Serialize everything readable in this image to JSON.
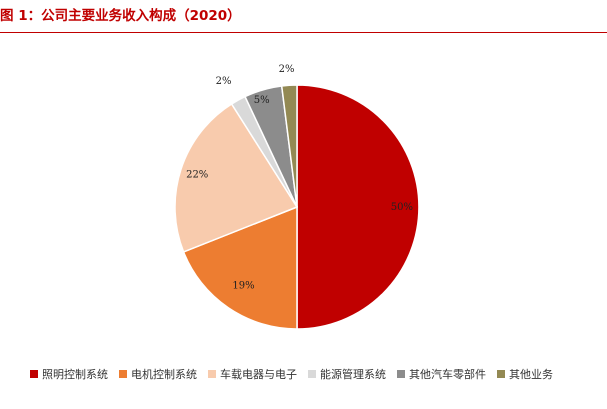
{
  "header": {
    "title": "图 1：公司主要业务收入构成（2020）"
  },
  "colors": {
    "title": "#c00000",
    "slices": [
      "#c00000",
      "#ed7d31",
      "#f8cbad",
      "#d9d9d9",
      "#8c8c8c",
      "#938953"
    ]
  },
  "chart_data": {
    "type": "pie",
    "title": "图 1：公司主要业务收入构成（2020）",
    "categories": [
      "照明控制系统",
      "电机控制系统",
      "车载电器与电子",
      "能源管理系统",
      "其他汽车零部件",
      "其他业务"
    ],
    "values": [
      50,
      19,
      22,
      2,
      5,
      2
    ],
    "labels": [
      "50%",
      "19%",
      "22%",
      "2%",
      "5%",
      "2%"
    ],
    "start": "12 o'clock",
    "direction": "clockwise",
    "legend": "bottom"
  }
}
